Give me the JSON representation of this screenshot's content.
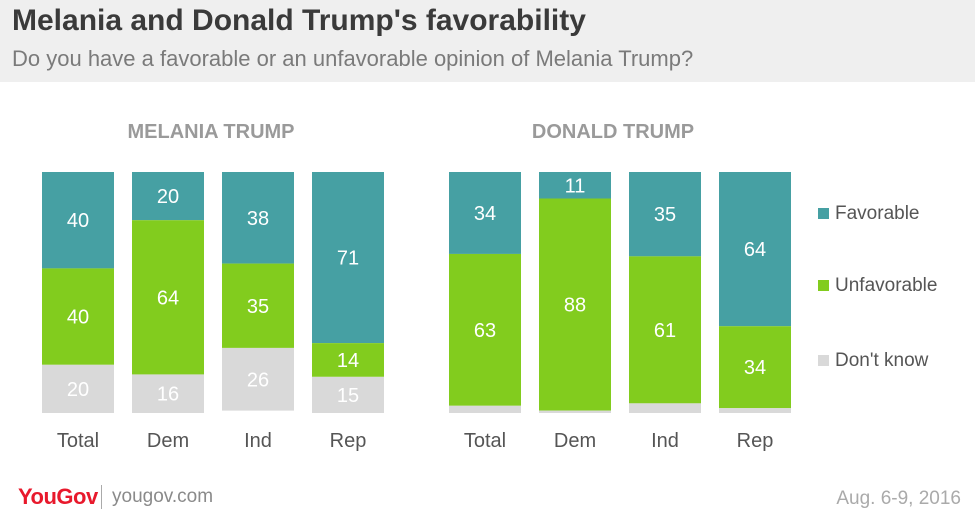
{
  "title": "Melania and Donald Trump's favorability",
  "subtitle": "Do you have a favorable or an unfavorable opinion of Melania Trump?",
  "colors": {
    "favorable": "#46a0a3",
    "unfavorable": "#82cc1e",
    "dont_know": "#d9d9d9"
  },
  "chart_data": [
    {
      "type": "bar",
      "stacked": true,
      "title": "MELANIA TRUMP",
      "categories": [
        "Total",
        "Dem",
        "Ind",
        "Rep"
      ],
      "ylim": [
        0,
        100
      ],
      "series": [
        {
          "name": "Favorable",
          "values": [
            40,
            20,
            38,
            71
          ]
        },
        {
          "name": "Unfavorable",
          "values": [
            40,
            64,
            35,
            14
          ]
        },
        {
          "name": "Don't know",
          "values": [
            20,
            16,
            26,
            15
          ]
        }
      ]
    },
    {
      "type": "bar",
      "stacked": true,
      "title": "DONALD TRUMP",
      "categories": [
        "Total",
        "Dem",
        "Ind",
        "Rep"
      ],
      "ylim": [
        0,
        100
      ],
      "series": [
        {
          "name": "Favorable",
          "values": [
            34,
            11,
            35,
            64
          ]
        },
        {
          "name": "Unfavorable",
          "values": [
            63,
            88,
            61,
            34
          ]
        },
        {
          "name": "Don't know",
          "values": [
            3,
            1,
            4,
            2
          ]
        }
      ]
    }
  ],
  "legend": [
    "Favorable",
    "Unfavorable",
    "Don't know"
  ],
  "footer": {
    "logo": "YouGov",
    "url": "yougov.com",
    "date": "Aug. 6-9, 2016"
  }
}
